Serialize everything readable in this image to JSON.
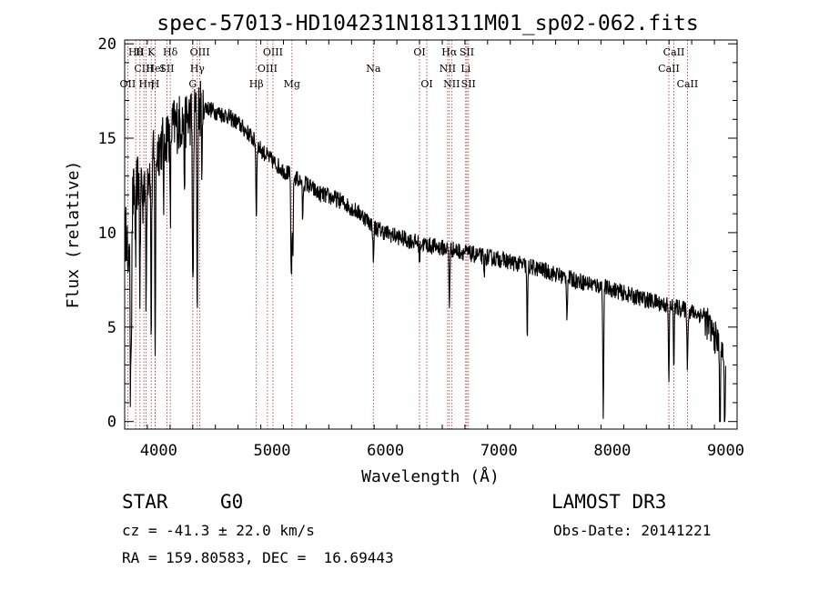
{
  "chart_data": {
    "type": "line",
    "title": "spec-57013-HD104231N181311M01_sp02-062.fits",
    "xlabel": "Wavelength (Å)",
    "ylabel": "Flux (relative)",
    "xlim": [
      3700,
      9100
    ],
    "ylim": [
      -0.4,
      20.2
    ],
    "xticks": [
      4000,
      5000,
      6000,
      7000,
      8000,
      9000
    ],
    "yticks": [
      0,
      5,
      10,
      15,
      20
    ],
    "lines": [
      {
        "wl": 3797,
        "labels": [
          {
            "text": "Hθ",
            "row": 0
          }
        ]
      },
      {
        "wl": 3835,
        "labels": [
          {
            "text": "H",
            "row": 0
          }
        ]
      },
      {
        "wl": 3727,
        "labels": [
          {
            "text": "OII",
            "row": 2
          }
        ]
      },
      {
        "wl": 3889,
        "labels": [
          {
            "text": "Hη",
            "row": 2
          }
        ]
      },
      {
        "wl": 3869,
        "labels": [
          {
            "text": "CIII",
            "row": 1
          }
        ]
      },
      {
        "wl": 3934,
        "labels": [
          {
            "text": "K",
            "row": 0
          }
        ]
      },
      {
        "wl": 3969,
        "labels": [
          {
            "text": "H",
            "row": 2
          }
        ]
      },
      {
        "wl": 3970,
        "labels": [
          {
            "text": "HeI",
            "row": 1
          }
        ]
      },
      {
        "wl": 4072,
        "labels": [
          {
            "text": "SII",
            "row": 1
          }
        ]
      },
      {
        "wl": 4102,
        "labels": [
          {
            "text": "Hδ",
            "row": 0
          }
        ]
      },
      {
        "wl": 4300,
        "labels": [
          {
            "text": "G",
            "row": 2
          }
        ]
      },
      {
        "wl": 4340,
        "labels": [
          {
            "text": "Hγ",
            "row": 1
          }
        ]
      },
      {
        "wl": 4363,
        "labels": [
          {
            "text": "OIII",
            "row": 0
          }
        ]
      },
      {
        "wl": 4861,
        "labels": [
          {
            "text": "Hβ",
            "row": 2
          }
        ]
      },
      {
        "wl": 4959,
        "labels": [
          {
            "text": "OIII",
            "row": 1
          }
        ]
      },
      {
        "wl": 5007,
        "labels": [
          {
            "text": "OIII",
            "row": 0
          }
        ]
      },
      {
        "wl": 5175,
        "labels": [
          {
            "text": "Mg",
            "row": 2
          }
        ]
      },
      {
        "wl": 5893,
        "labels": [
          {
            "text": "Na",
            "row": 1
          }
        ]
      },
      {
        "wl": 6300,
        "labels": [
          {
            "text": "OI",
            "row": 0
          }
        ]
      },
      {
        "wl": 6364,
        "labels": [
          {
            "text": "OI",
            "row": 2
          }
        ]
      },
      {
        "wl": 6548,
        "labels": [
          {
            "text": "NII",
            "row": 1
          }
        ]
      },
      {
        "wl": 6563,
        "labels": [
          {
            "text": "Hα",
            "row": 0
          }
        ]
      },
      {
        "wl": 6583,
        "labels": [
          {
            "text": "NII",
            "row": 2
          }
        ]
      },
      {
        "wl": 6707,
        "labels": [
          {
            "text": "Li",
            "row": 1
          }
        ]
      },
      {
        "wl": 6717,
        "labels": [
          {
            "text": "SII",
            "row": 0
          }
        ]
      },
      {
        "wl": 6731,
        "labels": [
          {
            "text": "SII",
            "row": 2
          }
        ]
      },
      {
        "wl": 8498,
        "labels": [
          {
            "text": "CaII",
            "row": 1
          }
        ]
      },
      {
        "wl": 8542,
        "labels": [
          {
            "text": "CaII",
            "row": 0
          }
        ]
      },
      {
        "wl": 8662,
        "labels": [
          {
            "text": "CaII",
            "row": 2
          }
        ]
      }
    ],
    "continuum": [
      [
        3700,
        9.6
      ],
      [
        3800,
        12.6
      ],
      [
        3900,
        13.2
      ],
      [
        4000,
        14.5
      ],
      [
        4100,
        15.5
      ],
      [
        4200,
        15.9
      ],
      [
        4300,
        16.2
      ],
      [
        4400,
        16.7
      ],
      [
        4500,
        16.4
      ],
      [
        4600,
        16.2
      ],
      [
        4700,
        15.8
      ],
      [
        4800,
        15.2
      ],
      [
        4900,
        14.4
      ],
      [
        5000,
        13.8
      ],
      [
        5100,
        13.3
      ],
      [
        5200,
        12.9
      ],
      [
        5300,
        12.6
      ],
      [
        5400,
        12.1
      ],
      [
        5500,
        11.9
      ],
      [
        5600,
        11.7
      ],
      [
        5700,
        11.3
      ],
      [
        5800,
        10.9
      ],
      [
        5900,
        10.3
      ],
      [
        6000,
        10.0
      ],
      [
        6200,
        9.6
      ],
      [
        6400,
        9.3
      ],
      [
        6600,
        9.1
      ],
      [
        6800,
        8.8
      ],
      [
        7000,
        8.6
      ],
      [
        7200,
        8.3
      ],
      [
        7400,
        8.0
      ],
      [
        7600,
        7.6
      ],
      [
        7800,
        7.3
      ],
      [
        8000,
        7.0
      ],
      [
        8200,
        6.6
      ],
      [
        8400,
        6.3
      ],
      [
        8600,
        6.0
      ],
      [
        8800,
        5.6
      ],
      [
        8900,
        4.5
      ],
      [
        9000,
        3.5
      ]
    ],
    "absorption": [
      [
        3730,
        4
      ],
      [
        3750,
        9
      ],
      [
        3760,
        6
      ],
      [
        3797,
        4
      ],
      [
        3835,
        6
      ],
      [
        3860,
        2
      ],
      [
        3889,
        7
      ],
      [
        3934,
        9
      ],
      [
        3969,
        10
      ],
      [
        4045,
        3
      ],
      [
        4102,
        5
      ],
      [
        4227,
        3
      ],
      [
        4300,
        7
      ],
      [
        4305,
        5
      ],
      [
        4340,
        10
      ],
      [
        4383,
        3
      ],
      [
        4861,
        4
      ],
      [
        5167,
        3
      ],
      [
        5172,
        4
      ],
      [
        5183,
        4
      ],
      [
        5270,
        2
      ],
      [
        5893,
        2
      ],
      [
        6300,
        1
      ],
      [
        6563,
        3
      ],
      [
        6870,
        1
      ],
      [
        7250,
        4
      ],
      [
        7600,
        2
      ],
      [
        7920,
        7
      ],
      [
        8498,
        4
      ],
      [
        8542,
        3
      ],
      [
        8662,
        3
      ],
      [
        8950,
        6
      ],
      [
        8990,
        5
      ]
    ],
    "noise_scale": 0.45
  },
  "info": {
    "object_class": "STAR",
    "subclass": "G0",
    "survey": "LAMOST DR3",
    "redshift": "cz = -41.3 ± 22.0 km/s",
    "obs_date": "Obs-Date: 20141221",
    "coords": "RA = 159.80583, DEC =  16.69443"
  },
  "colors": {
    "line_marker": "#b03030",
    "spectrum": "#000000"
  }
}
